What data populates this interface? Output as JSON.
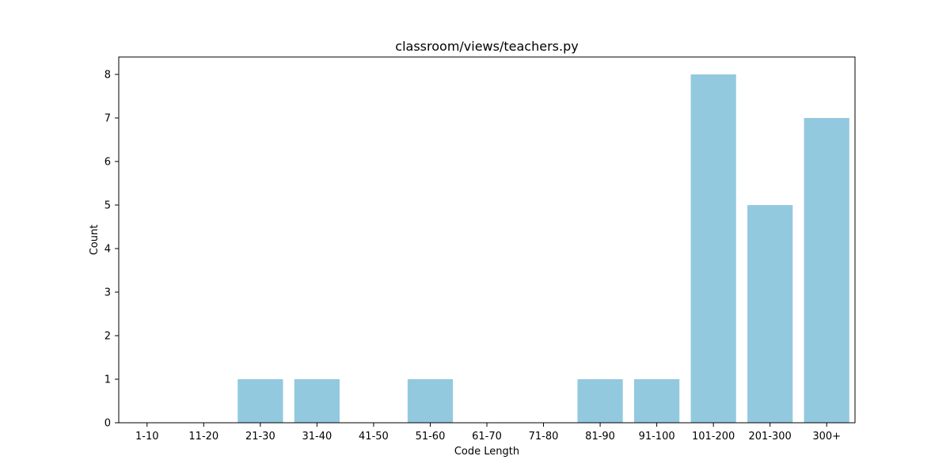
{
  "chart_data": {
    "type": "bar",
    "title": "classroom/views/teachers.py",
    "xlabel": "Code Length",
    "ylabel": "Count",
    "categories": [
      "1-10",
      "11-20",
      "21-30",
      "31-40",
      "41-50",
      "51-60",
      "61-70",
      "71-80",
      "81-90",
      "91-100",
      "101-200",
      "201-300",
      "300+"
    ],
    "values": [
      0,
      0,
      1,
      1,
      0,
      1,
      0,
      0,
      1,
      1,
      8,
      5,
      7
    ],
    "ylim": [
      0,
      8.4
    ],
    "yticks": [
      0,
      1,
      2,
      3,
      4,
      5,
      6,
      7,
      8
    ],
    "grid": false,
    "bar_color": "#92c9df"
  }
}
